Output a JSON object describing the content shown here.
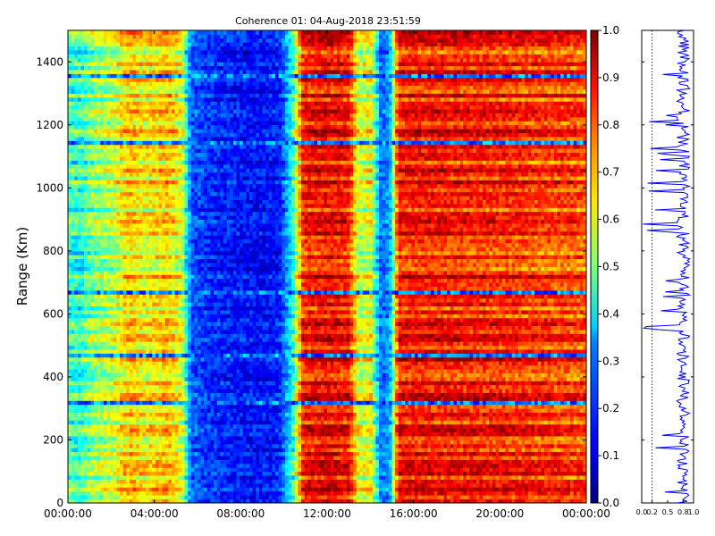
{
  "chart_data": [
    {
      "type": "heatmap",
      "title": "Coherence 01: 04-Aug-2018 23:51:59",
      "xlabel": "",
      "ylabel": "Range (Km)",
      "xlim": [
        "00:00:00",
        "24:00:00"
      ],
      "ylim": [
        0,
        1500
      ],
      "x_ticks": [
        "00:00:00",
        "04:00:00",
        "08:00:00",
        "12:00:00",
        "16:00:00",
        "20:00:00",
        "00:00:00"
      ],
      "y_ticks": [
        0,
        200,
        400,
        600,
        800,
        1000,
        1200,
        1400
      ],
      "colormap": "jet",
      "clim": [
        0.0,
        1.0
      ],
      "colorbar_ticks": [
        "0.0",
        "0.1",
        "0.2",
        "0.3",
        "0.4",
        "0.5",
        "0.6",
        "0.7",
        "0.8",
        "0.9",
        "1.0"
      ],
      "time_profile": {
        "hours": [
          0,
          0.6,
          1.2,
          2.0,
          2.9,
          3.6,
          4.6,
          5.3,
          5.7,
          6.5,
          8.0,
          9.0,
          9.8,
          10.4,
          10.9,
          12.0,
          13.0,
          13.5,
          14.0,
          14.5,
          14.9,
          15.3,
          16.0,
          20.0,
          24.0
        ],
        "values": [
          0.45,
          0.42,
          0.52,
          0.55,
          0.68,
          0.62,
          0.68,
          0.58,
          0.22,
          0.17,
          0.14,
          0.13,
          0.15,
          0.4,
          0.85,
          0.88,
          0.85,
          0.55,
          0.62,
          0.22,
          0.28,
          0.85,
          0.86,
          0.84,
          0.8
        ]
      },
      "notable_ranges_km": [
        {
          "range": 320,
          "description": "low-coherence stripe"
        },
        {
          "range": 465,
          "description": "low-coherence stripe"
        },
        {
          "range": 665,
          "description": "low-coherence stripe"
        },
        {
          "range": 1145,
          "description": "low-coherence stripe"
        },
        {
          "range": 1360,
          "description": "low-coherence stripe"
        }
      ]
    },
    {
      "type": "line",
      "description": "side profile of mean coherence vs range",
      "xlim": [
        0.0,
        1.0
      ],
      "x_ticks": [
        "0.0",
        "0.2",
        "0.5",
        "0.8",
        "1.0"
      ],
      "ylim": [
        0,
        1500
      ],
      "reference_line_x": 0.2,
      "typical_value": 0.8,
      "series_color": "#0000ff"
    }
  ]
}
